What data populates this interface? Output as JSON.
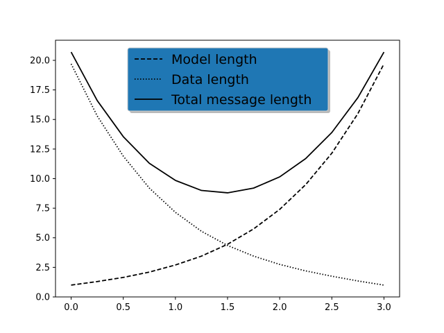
{
  "chart_data": {
    "type": "line",
    "title": "",
    "xlabel": "",
    "ylabel": "",
    "xlim": [
      -0.15,
      3.15
    ],
    "ylim": [
      0.0,
      21.7
    ],
    "xticks": [
      0.0,
      0.5,
      1.0,
      1.5,
      2.0,
      2.5,
      3.0
    ],
    "xtick_labels": [
      "0.0",
      "0.5",
      "1.0",
      "1.5",
      "2.0",
      "2.5",
      "3.0"
    ],
    "yticks": [
      0.0,
      2.5,
      5.0,
      7.5,
      10.0,
      12.5,
      15.0,
      17.5,
      20.0
    ],
    "ytick_labels": [
      "0.0",
      "2.5",
      "5.0",
      "7.5",
      "10.0",
      "12.5",
      "15.0",
      "17.5",
      "20.0"
    ],
    "grid": false,
    "legend_position": "upper center",
    "legend_facecolor": "#1f77b4",
    "series": [
      {
        "name": "Model length",
        "style": "dashed",
        "color": "#000000",
        "x": [
          0.0,
          0.25,
          0.5,
          0.75,
          1.0,
          1.25,
          1.5,
          1.75,
          2.0,
          2.25,
          2.5,
          2.75,
          3.0
        ],
        "y": [
          1.0,
          1.3,
          1.65,
          2.1,
          2.7,
          3.45,
          4.45,
          5.75,
          7.4,
          9.5,
          12.15,
          15.5,
          19.7
        ]
      },
      {
        "name": "Data length",
        "style": "dotted",
        "color": "#000000",
        "x": [
          0.0,
          0.25,
          0.5,
          0.75,
          1.0,
          1.25,
          1.5,
          1.75,
          2.0,
          2.25,
          2.5,
          2.75,
          3.0
        ],
        "y": [
          19.7,
          15.3,
          11.9,
          9.2,
          7.15,
          5.55,
          4.35,
          3.45,
          2.75,
          2.2,
          1.75,
          1.35,
          1.0
        ]
      },
      {
        "name": "Total message length",
        "style": "solid",
        "color": "#000000",
        "x": [
          0.0,
          0.25,
          0.5,
          0.75,
          1.0,
          1.25,
          1.5,
          1.75,
          2.0,
          2.25,
          2.5,
          2.75,
          3.0
        ],
        "y": [
          20.7,
          16.6,
          13.55,
          11.3,
          9.85,
          9.0,
          8.8,
          9.2,
          10.15,
          11.7,
          13.9,
          16.85,
          20.7
        ]
      }
    ]
  }
}
